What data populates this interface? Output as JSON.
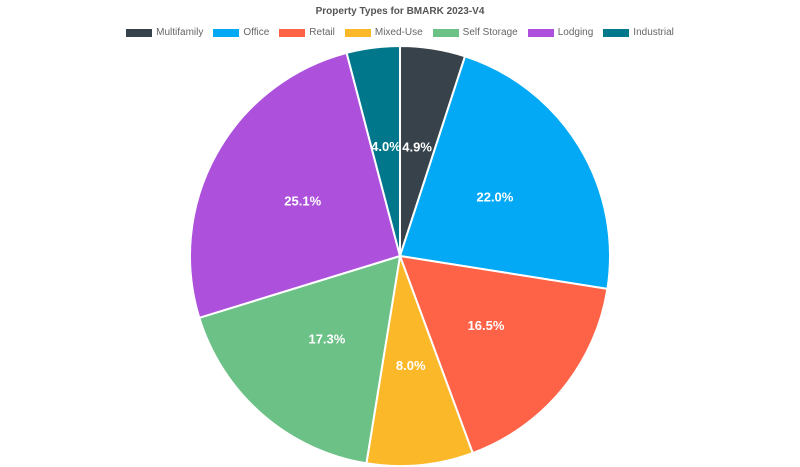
{
  "chart_data": {
    "type": "pie",
    "title": "Property Types for BMARK 2023-V4",
    "legend_position": "top",
    "slices": [
      {
        "name": "Multifamily",
        "value": 4.9,
        "label": "4.9%",
        "color": "#37424a"
      },
      {
        "name": "Office",
        "value": 22.0,
        "label": "22.0%",
        "color": "#03a9f4"
      },
      {
        "name": "Retail",
        "value": 16.5,
        "label": "16.5%",
        "color": "#ff6347"
      },
      {
        "name": "Mixed-Use",
        "value": 8.0,
        "label": "8.0%",
        "color": "#fbb829"
      },
      {
        "name": "Self Storage",
        "value": 17.3,
        "label": "17.3%",
        "color": "#6cc187"
      },
      {
        "name": "Lodging",
        "value": 25.1,
        "label": "25.1%",
        "color": "#ad51dc"
      },
      {
        "name": "Industrial",
        "value": 4.0,
        "label": "4.0%",
        "color": "#00778a"
      }
    ]
  }
}
